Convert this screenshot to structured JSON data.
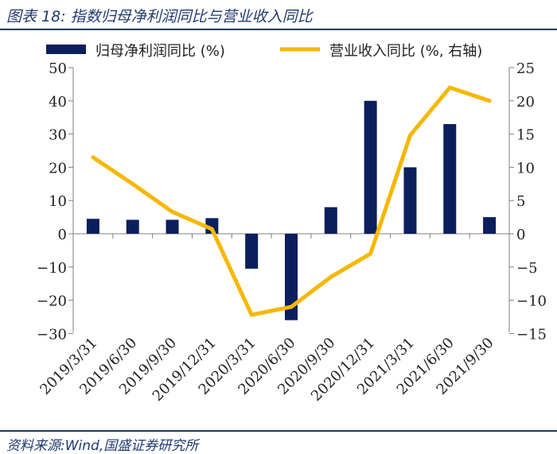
{
  "header": {
    "title": "图表 18:  指数归母净利润同比与营业收入同比"
  },
  "footer": {
    "source": "资料来源:Wind,国盛证券研究所"
  },
  "colors": {
    "bar": "#0a1f5c",
    "line": "#f5b800",
    "axis": "#7f7f7f"
  },
  "chart_data": {
    "type": "bar",
    "categories": [
      "2019/3/31",
      "2019/6/30",
      "2019/9/30",
      "2019/12/31",
      "2020/3/31",
      "2020/6/30",
      "2020/9/30",
      "2020/12/31",
      "2021/3/31",
      "2021/6/30",
      "2021/9/30"
    ],
    "series": [
      {
        "name": "归母净利润同比 (%)",
        "type": "bar",
        "axis": "left",
        "values": [
          4.5,
          4.2,
          4.2,
          4.7,
          -10.5,
          -26,
          8,
          40,
          20,
          33,
          5
        ]
      },
      {
        "name": "营业收入同比 (%, 右轴)",
        "type": "line",
        "axis": "right",
        "values": [
          11.5,
          7.5,
          3.3,
          0.7,
          -12.2,
          -11,
          -6.5,
          -3,
          14.8,
          22,
          20
        ]
      }
    ],
    "y_left": {
      "ylim": [
        -30,
        50
      ],
      "ticks": [
        50,
        40,
        30,
        20,
        10,
        0,
        -10,
        -20,
        -30
      ]
    },
    "y_right": {
      "ylim": [
        -15,
        25
      ],
      "ticks": [
        25,
        20,
        15,
        10,
        5,
        0,
        -5,
        -10,
        -15
      ]
    },
    "legend": {
      "placement": "top"
    },
    "grid": false
  }
}
